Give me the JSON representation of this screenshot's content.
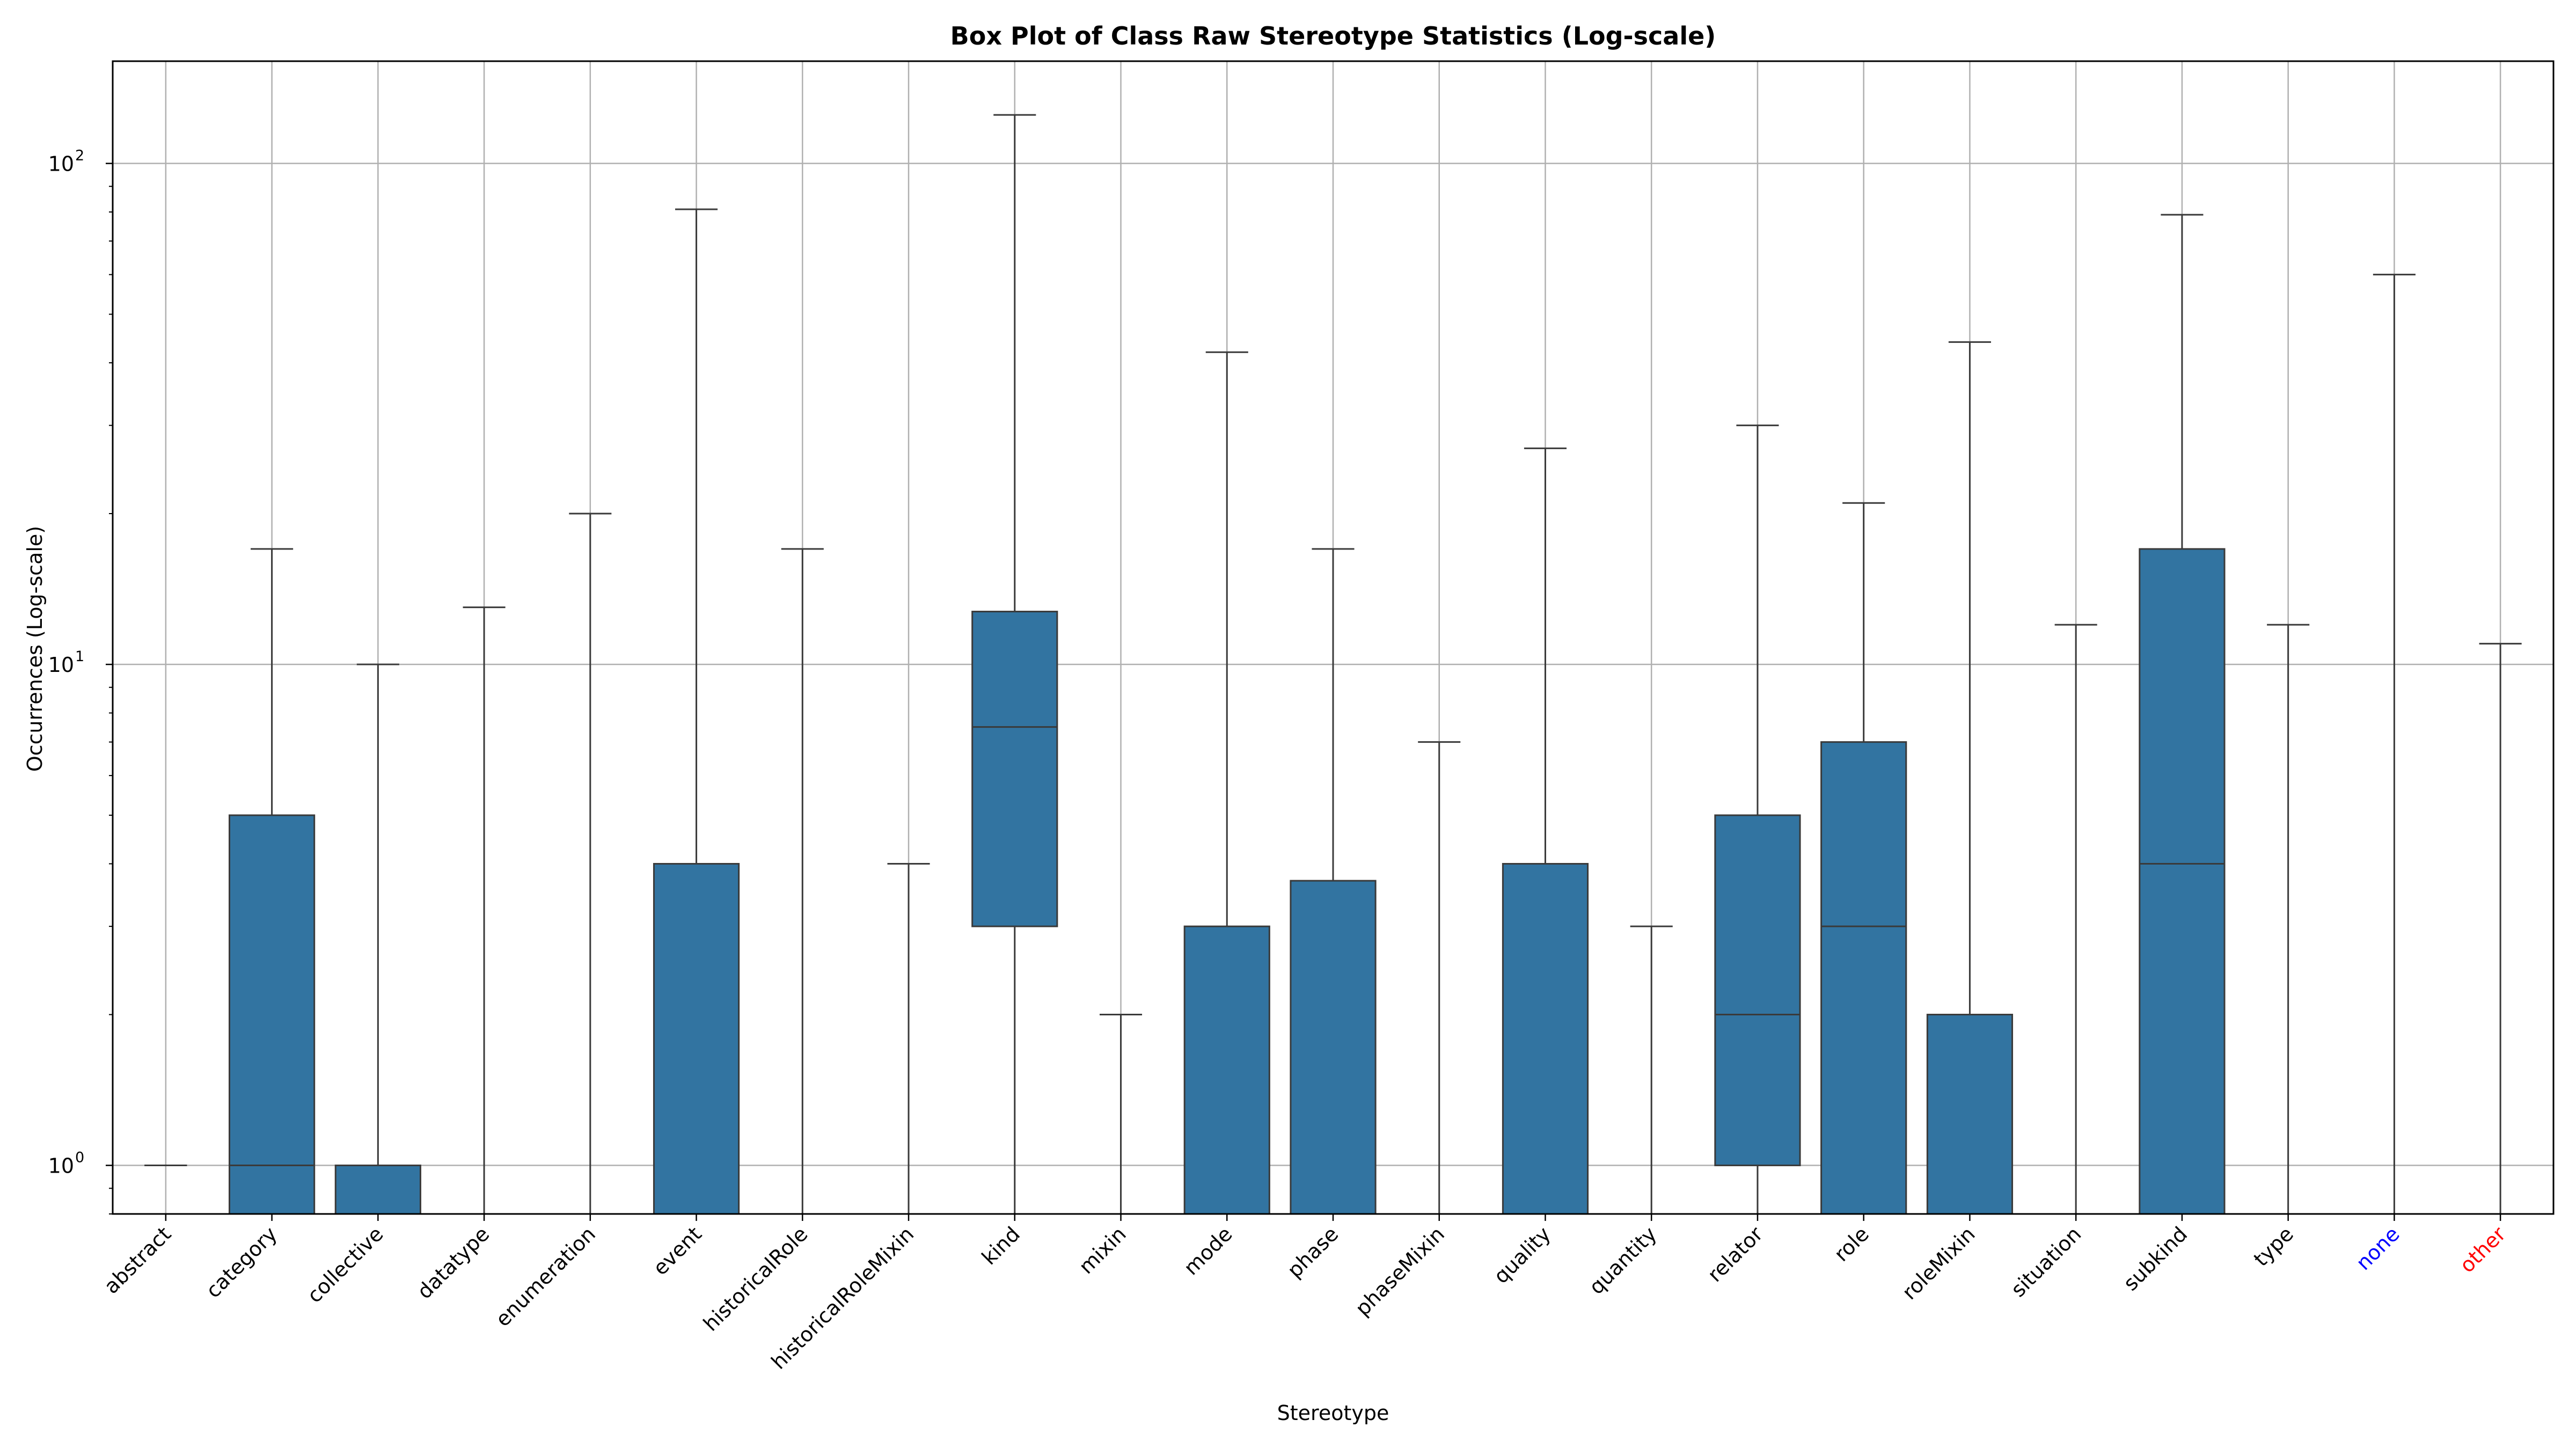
{
  "chart_data": {
    "type": "box",
    "title": "Box Plot of Class Raw Stereotype Statistics (Log-scale)",
    "xlabel": "Stereotype",
    "ylabel": "Occurrences (Log-scale)",
    "yscale": "log",
    "ylim": [
      0.8,
      160
    ],
    "yticks": [
      {
        "base": "10",
        "exp": "0",
        "value": 1
      },
      {
        "base": "10",
        "exp": "1",
        "value": 10
      },
      {
        "base": "10",
        "exp": "2",
        "value": 100
      }
    ],
    "grid": true,
    "box_color": "#3274a1",
    "edge_color": "#3a3a3a",
    "grid_color": "#b0b0b0",
    "categories": [
      {
        "name": "abstract",
        "label_color": "#000000",
        "min": 1,
        "q1": 1,
        "median": 1,
        "q3": 1,
        "max": 1
      },
      {
        "name": "category",
        "label_color": "#000000",
        "min": 0.5,
        "q1": 0.5,
        "median": 1,
        "q3": 5,
        "max": 17
      },
      {
        "name": "collective",
        "label_color": "#000000",
        "min": 0.5,
        "q1": 0.5,
        "median": 0.5,
        "q3": 1,
        "max": 10
      },
      {
        "name": "datatype",
        "label_color": "#000000",
        "min": 0.5,
        "q1": 0.5,
        "median": 0.5,
        "q3": 0.5,
        "max": 13
      },
      {
        "name": "enumeration",
        "label_color": "#000000",
        "min": 0.5,
        "q1": 0.5,
        "median": 0.5,
        "q3": 0.5,
        "max": 20
      },
      {
        "name": "event",
        "label_color": "#000000",
        "min": 0.5,
        "q1": 0.5,
        "median": 0.5,
        "q3": 4,
        "max": 81
      },
      {
        "name": "historicalRole",
        "label_color": "#000000",
        "min": 0.5,
        "q1": 0.5,
        "median": 0.5,
        "q3": 0.5,
        "max": 17
      },
      {
        "name": "historicalRoleMixin",
        "label_color": "#000000",
        "min": 0.5,
        "q1": 0.5,
        "median": 0.5,
        "q3": 0.5,
        "max": 4
      },
      {
        "name": "kind",
        "label_color": "#000000",
        "min": 0.5,
        "q1": 3,
        "median": 7.5,
        "q3": 12.75,
        "max": 125
      },
      {
        "name": "mixin",
        "label_color": "#000000",
        "min": 0.5,
        "q1": 0.5,
        "median": 0.5,
        "q3": 0.5,
        "max": 2
      },
      {
        "name": "mode",
        "label_color": "#000000",
        "min": 0.5,
        "q1": 0.5,
        "median": 0.5,
        "q3": 3,
        "max": 42
      },
      {
        "name": "phase",
        "label_color": "#000000",
        "min": 0.5,
        "q1": 0.5,
        "median": 0.5,
        "q3": 3.7,
        "max": 17
      },
      {
        "name": "phaseMixin",
        "label_color": "#000000",
        "min": 0.5,
        "q1": 0.5,
        "median": 0.5,
        "q3": 0.5,
        "max": 7
      },
      {
        "name": "quality",
        "label_color": "#000000",
        "min": 0.5,
        "q1": 0.5,
        "median": 0.5,
        "q3": 4,
        "max": 27
      },
      {
        "name": "quantity",
        "label_color": "#000000",
        "min": 0.5,
        "q1": 0.5,
        "median": 0.5,
        "q3": 0.5,
        "max": 3
      },
      {
        "name": "relator",
        "label_color": "#000000",
        "min": 0.5,
        "q1": 1,
        "median": 2,
        "q3": 5,
        "max": 30
      },
      {
        "name": "role",
        "label_color": "#000000",
        "min": 0.5,
        "q1": 0.5,
        "median": 3,
        "q3": 7,
        "max": 21
      },
      {
        "name": "roleMixin",
        "label_color": "#000000",
        "min": 0.5,
        "q1": 0.5,
        "median": 0.5,
        "q3": 2,
        "max": 44
      },
      {
        "name": "situation",
        "label_color": "#000000",
        "min": 0.5,
        "q1": 0.5,
        "median": 0.5,
        "q3": 0.5,
        "max": 12
      },
      {
        "name": "subkind",
        "label_color": "#000000",
        "min": 0.5,
        "q1": 0.5,
        "median": 4,
        "q3": 17,
        "max": 79
      },
      {
        "name": "type",
        "label_color": "#000000",
        "min": 0.5,
        "q1": 0.5,
        "median": 0.5,
        "q3": 0.5,
        "max": 12
      },
      {
        "name": "none",
        "label_color": "#0000ff",
        "min": 0.5,
        "q1": 0.5,
        "median": 0.5,
        "q3": 0.5,
        "max": 60
      },
      {
        "name": "other",
        "label_color": "#ff0000",
        "min": 0.5,
        "q1": 0.5,
        "median": 0.5,
        "q3": 0.5,
        "max": 11
      }
    ]
  }
}
